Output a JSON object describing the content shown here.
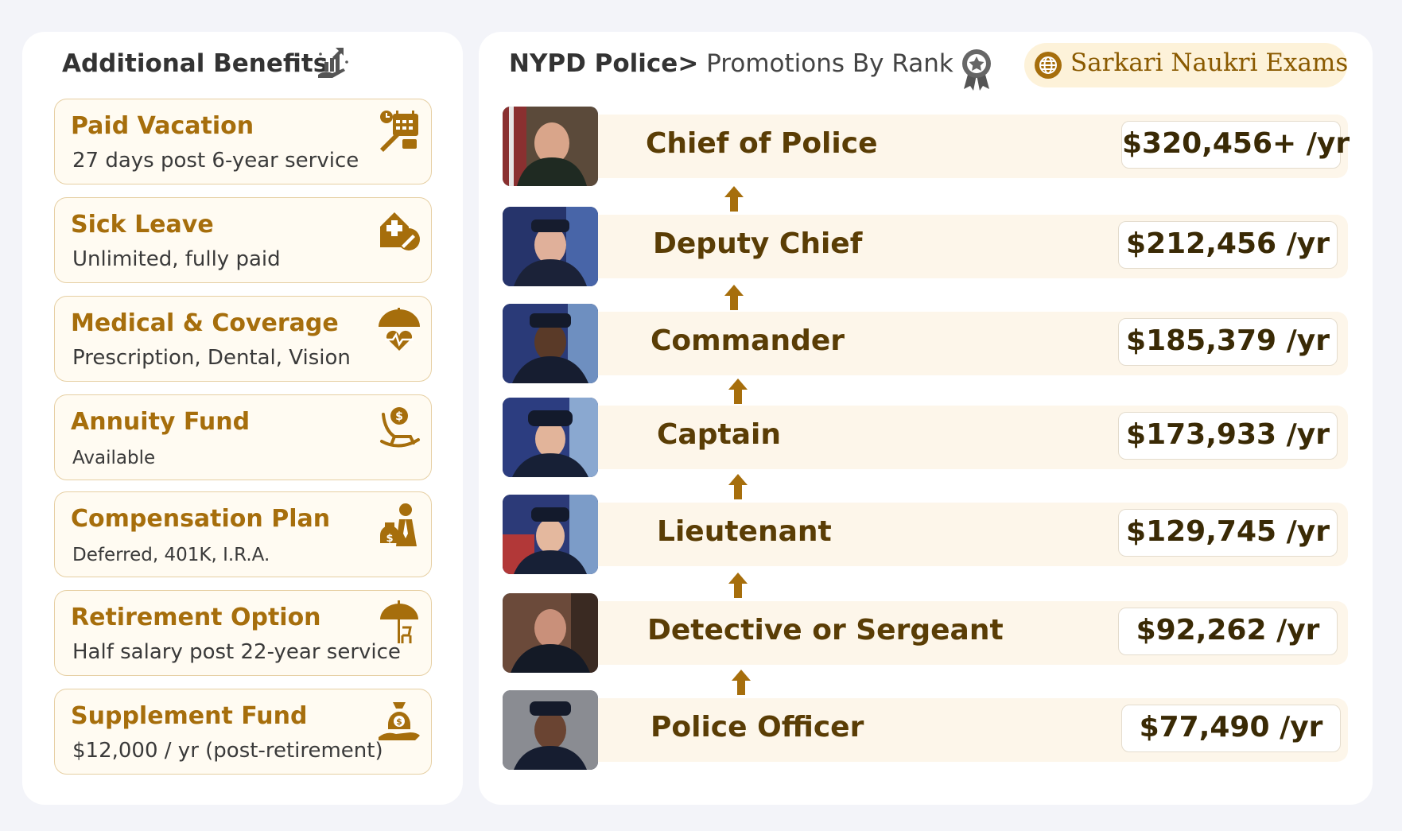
{
  "benefits": {
    "title": "Additional Benefits",
    "title_icon": "growth-chart-hand-icon",
    "items": [
      {
        "title": "Paid Vacation",
        "desc": "27 days post 6-year service",
        "icon": "vacation-calendar-icon"
      },
      {
        "title": "Sick Leave",
        "desc": "Unlimited, fully paid",
        "icon": "hospital-thermometer-icon"
      },
      {
        "title": "Medical & Coverage",
        "desc": "Prescription, Dental, Vision",
        "icon": "umbrella-heart-icon"
      },
      {
        "title": "Annuity Fund",
        "desc": "Available",
        "icon": "rocking-chair-coin-icon"
      },
      {
        "title": "Compensation Plan",
        "desc": "Deferred, 401K, I.R.A.",
        "icon": "money-bag-person-icon"
      },
      {
        "title": "Retirement Option",
        "desc": "Half salary post 22-year service",
        "icon": "beach-umbrella-chair-icon"
      },
      {
        "title": "Supplement Fund",
        "desc": "$12,000 / yr (post-retirement)",
        "icon": "money-bag-hand-icon"
      }
    ]
  },
  "promotions": {
    "title_main": "NYPD Police",
    "title_sep": ">",
    "title_sub": " Promotions By Rank",
    "title_icon": "award-ribbon-icon",
    "brand": {
      "name": "Sarkari Naukri Exams",
      "icon": "globe-icon"
    },
    "ranks": [
      {
        "name": "Chief of Police",
        "salary": "$320,456+ /yr"
      },
      {
        "name": "Deputy Chief",
        "salary": "$212,456 /yr"
      },
      {
        "name": "Commander",
        "salary": "$185,379 /yr"
      },
      {
        "name": "Captain",
        "salary": "$173,933 /yr"
      },
      {
        "name": "Lieutenant",
        "salary": "$129,745 /yr"
      },
      {
        "name": "Detective or Sergeant",
        "salary": "$92,262 /yr"
      },
      {
        "name": "Police Officer",
        "salary": "$77,490 /yr"
      }
    ]
  },
  "colors": {
    "accent": "#a66e0c",
    "arrow": "#a66e0c",
    "card_bg": "#fffbf2",
    "row_bg": "#fdf6ea",
    "brand_pill": "#fdf2d9"
  }
}
